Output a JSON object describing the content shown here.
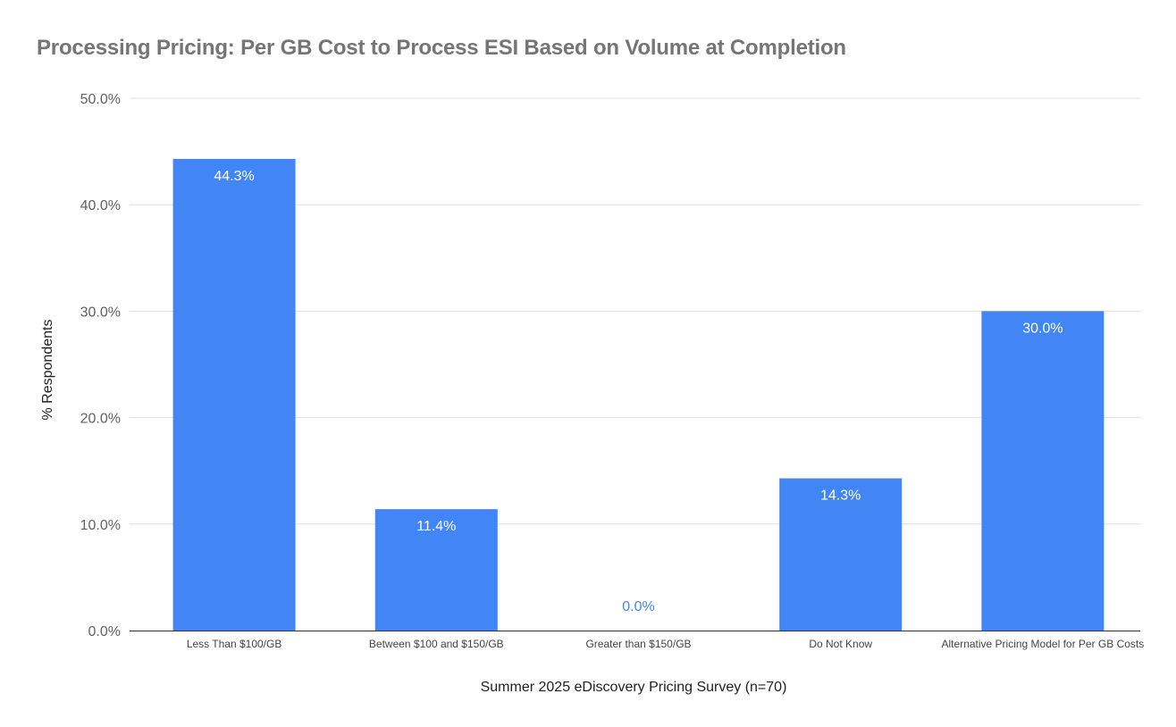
{
  "chart_data": {
    "type": "bar",
    "title": "Processing Pricing: Per GB Cost to Process ESI Based on Volume at Completion",
    "xlabel": "Summer 2025 eDiscovery Pricing Survey (n=70)",
    "ylabel": "% Respondents",
    "categories": [
      "Less Than $100/GB",
      "Between $100 and $150/GB",
      "Greater than $150/GB",
      "Do Not Know",
      "Alternative Pricing Model for Per GB Costs"
    ],
    "values": [
      44.3,
      11.4,
      0.0,
      14.3,
      30.0
    ],
    "data_labels": [
      "44.3%",
      "11.4%",
      "0.0%",
      "14.3%",
      "30.0%"
    ],
    "ylim": [
      0,
      50
    ],
    "yticks": [
      0,
      10,
      20,
      30,
      40,
      50
    ],
    "ytick_labels": [
      "0.0%",
      "10.0%",
      "20.0%",
      "30.0%",
      "40.0%",
      "50.0%"
    ],
    "grid": true,
    "legend": "none",
    "colors": {
      "bar": "#4285f4",
      "label_inside": "#ffffff",
      "label_outside": "#4285f4",
      "grid": "#e0e0e0",
      "axis": "#333333",
      "title": "#757575"
    }
  }
}
